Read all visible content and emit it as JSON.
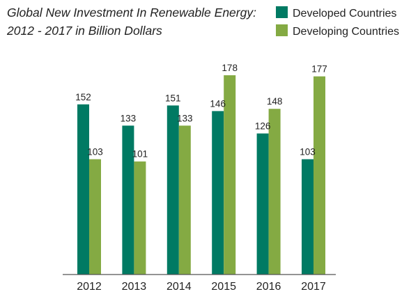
{
  "chart_data": {
    "type": "bar",
    "title": "Global New Investment In Renewable Energy:",
    "subtitle": "2012 - 2017 in Billion Dollars",
    "xlabel": "",
    "ylabel": "",
    "categories": [
      "2012",
      "2013",
      "2014",
      "2015",
      "2016",
      "2017"
    ],
    "series": [
      {
        "name": "Developed Countries",
        "values": [
          152,
          133,
          151,
          146,
          126,
          103
        ],
        "color": "#007a63"
      },
      {
        "name": "Developing Countries",
        "values": [
          103,
          101,
          133,
          178,
          148,
          177
        ],
        "color": "#84aa43"
      }
    ],
    "ylim": [
      0,
      178
    ],
    "grid": false,
    "legend_position": "top-right",
    "data_labels": true
  }
}
